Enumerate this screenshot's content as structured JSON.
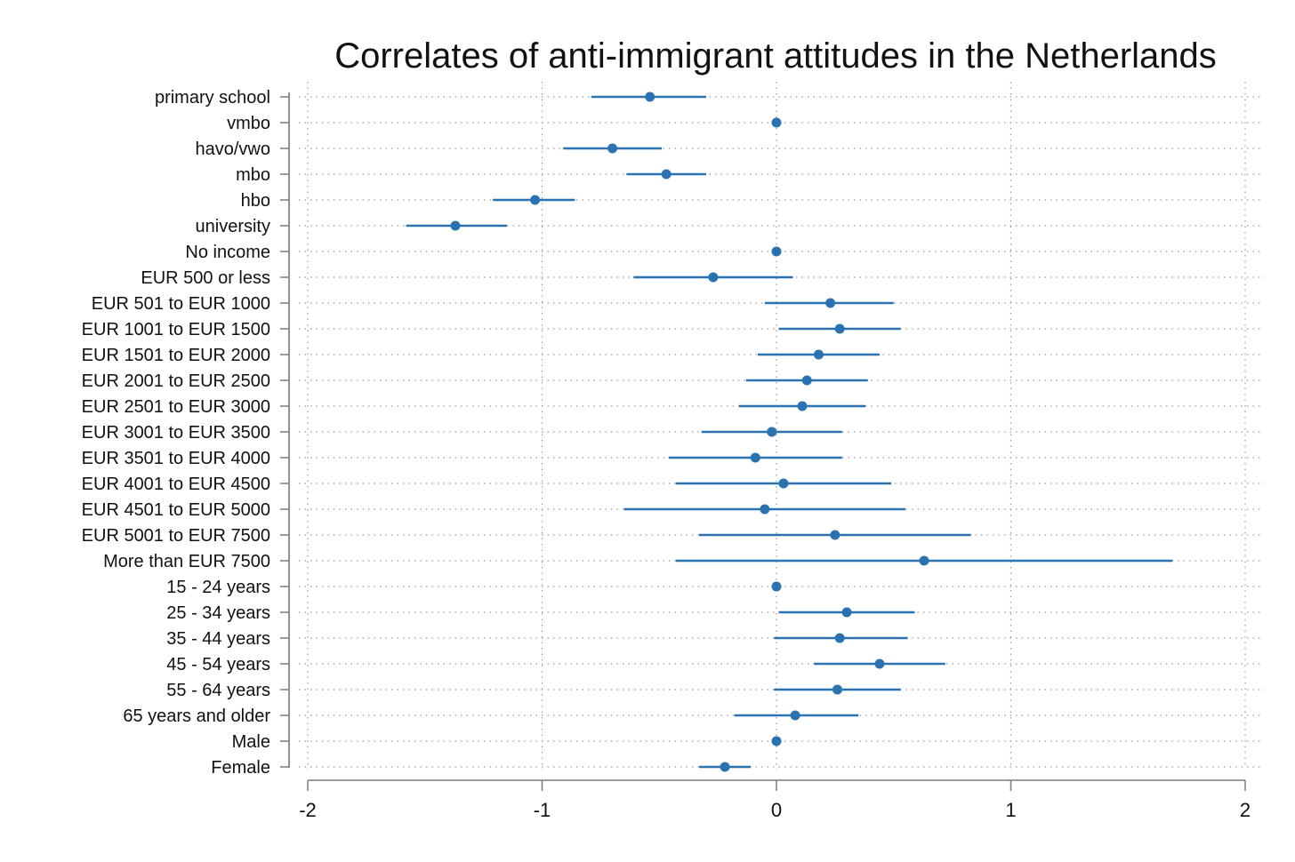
{
  "chart_data": {
    "type": "scatter",
    "title": "Correlates of anti-immigrant attitudes in the Netherlands",
    "xlabel": "",
    "ylabel": "",
    "xlim": [
      -2,
      2
    ],
    "xticks": [
      "-2",
      "-1",
      "0",
      "1",
      "2"
    ],
    "grid": true,
    "color": "#2a73b0",
    "series": [
      {
        "categories": [
          "primary school",
          "vmbo",
          "havo/vwo",
          "mbo",
          "hbo",
          "university",
          "No income",
          "EUR 500 or less",
          "EUR 501 to EUR 1000",
          "EUR 1001 to EUR 1500",
          "EUR 1501 to EUR 2000",
          "EUR 2001 to EUR 2500",
          "EUR 2501 to EUR 3000",
          "EUR 3001 to EUR 3500",
          "EUR 3501 to EUR 4000",
          "EUR 4001 to EUR 4500",
          "EUR 4501 to EUR 5000",
          "EUR 5001 to EUR 7500",
          "More than EUR 7500",
          "15 - 24 years",
          "25 - 34 years",
          "35 - 44 years",
          "45 - 54 years",
          "55 - 64 years",
          "65 years and older",
          "Male",
          "Female"
        ],
        "estimate": [
          -0.54,
          0,
          -0.7,
          -0.47,
          -1.03,
          -1.37,
          0,
          -0.27,
          0.23,
          0.27,
          0.18,
          0.13,
          0.11,
          -0.02,
          -0.09,
          0.03,
          -0.05,
          0.25,
          0.63,
          0,
          0.3,
          0.27,
          0.44,
          0.26,
          0.08,
          0,
          -0.22
        ],
        "ci_low": [
          -0.79,
          0,
          -0.91,
          -0.64,
          -1.21,
          -1.58,
          0,
          -0.61,
          -0.05,
          0.01,
          -0.08,
          -0.13,
          -0.16,
          -0.32,
          -0.46,
          -0.43,
          -0.65,
          -0.33,
          -0.43,
          0,
          0.01,
          -0.01,
          0.16,
          -0.01,
          -0.18,
          0,
          -0.33
        ],
        "ci_high": [
          -0.3,
          0,
          -0.49,
          -0.3,
          -0.86,
          -1.15,
          0,
          0.07,
          0.5,
          0.53,
          0.44,
          0.39,
          0.38,
          0.28,
          0.28,
          0.49,
          0.55,
          0.83,
          1.69,
          0,
          0.59,
          0.56,
          0.72,
          0.53,
          0.35,
          0,
          -0.11
        ]
      }
    ]
  }
}
